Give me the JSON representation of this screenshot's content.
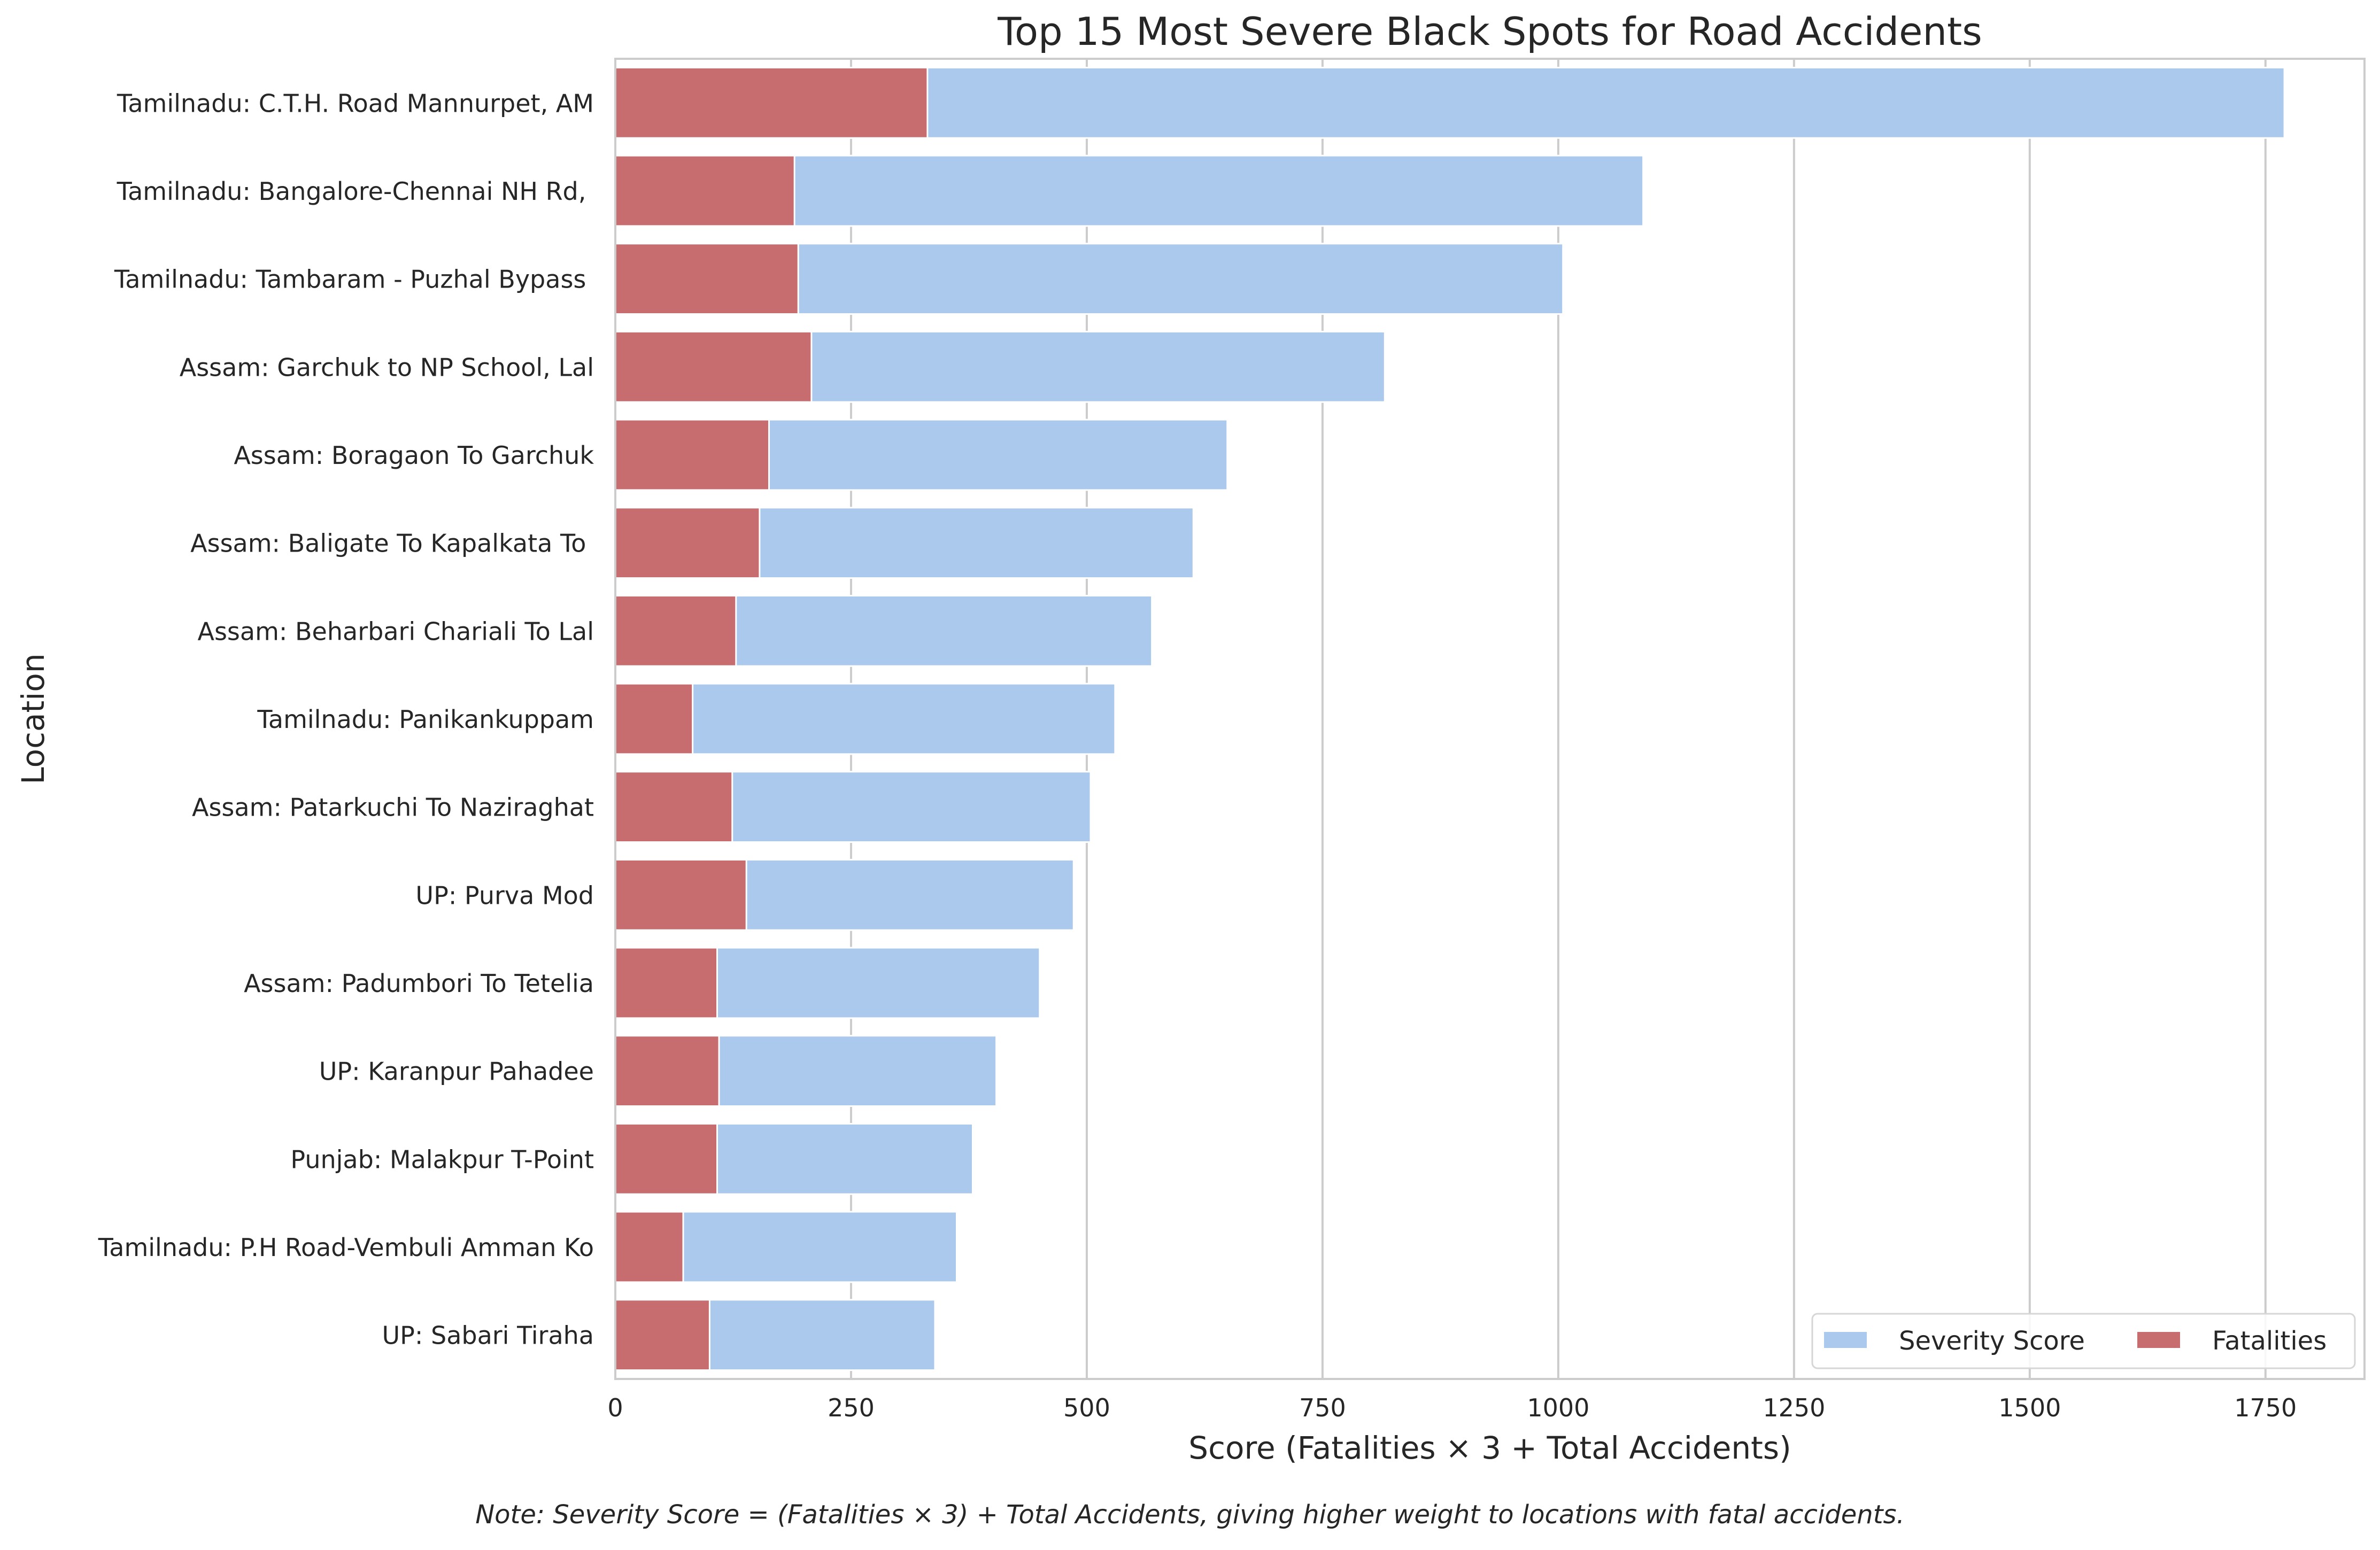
{
  "chart_data": {
    "type": "bar",
    "orientation": "horizontal",
    "title": "Top 15 Most Severe Black Spots for Road Accidents",
    "xlabel": "Score (Fatalities × 3 + Total Accidents)",
    "ylabel": "Location",
    "xlim": [
      0,
      1855
    ],
    "xticks": [
      0,
      250,
      500,
      750,
      1000,
      1250,
      1500,
      1750
    ],
    "grid": "x",
    "legend_position": "bottom-right",
    "categories": [
      "Tamilnadu: C.T.H. Road Mannurpet, AM",
      "Tamilnadu: Bangalore-Chennai NH Rd, ",
      "Tamilnadu: Tambaram - Puzhal Bypass ",
      "Assam: Garchuk to NP School, Lal",
      "Assam: Boragaon To Garchuk",
      "Assam: Baligate To Kapalkata To ",
      "Assam: Beharbari Chariali To Lal",
      "Tamilnadu: Panikankuppam",
      "Assam: Patarkuchi To Naziraghat",
      "UP: Purva Mod",
      "Assam: Padumbori To Tetelia",
      "UP: Karanpur Pahadee",
      "Punjab: Malakpur T-Point",
      "Tamilnadu: P.H Road-Vembuli Amman Ko",
      "UP: Sabari Tiraha"
    ],
    "series": [
      {
        "name": "Severity Score",
        "color": "#abc9ed",
        "values": [
          1770,
          1090,
          1005,
          816,
          649,
          613,
          569,
          530,
          504,
          486,
          450,
          404,
          379,
          362,
          339
        ]
      },
      {
        "name": "Fatalities",
        "color": "#c86d6f",
        "values": [
          331,
          190,
          194,
          208,
          163,
          153,
          128,
          82,
          124,
          139,
          108,
          110,
          108,
          72,
          100
        ]
      }
    ]
  },
  "note": "Note: Severity Score = (Fatalities × 3) + Total Accidents, giving higher weight to locations with fatal accidents."
}
